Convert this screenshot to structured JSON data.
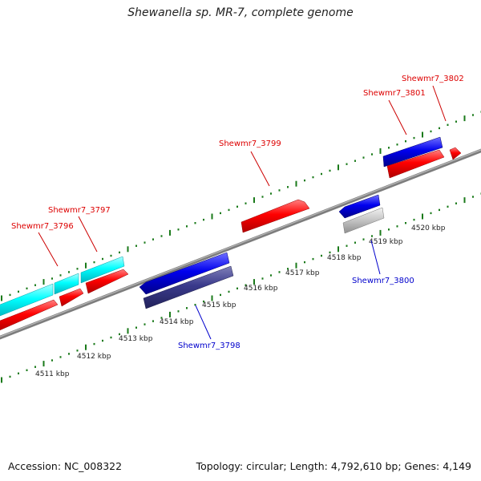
{
  "title": "Shewanella sp. MR-7, complete genome",
  "footer": {
    "accession": "Accession: NC_008322",
    "topology": "Topology: circular; Length: 4,792,610 bp; Genes: 4,149"
  },
  "colors": {
    "forward_gene": "#ff0000",
    "reverse_gene": "#0000ee",
    "cyan_gene": "#00ffff",
    "navy_gene": "#3a3a8c",
    "grey_gene": "#bdbdbd",
    "backbone": "#888888",
    "tick": "#1a7a1a",
    "fwd_label": "#dd0000",
    "rev_label": "#0000cc"
  },
  "scale_labels": [
    "4511 kbp",
    "4512 kbp",
    "4513 kbp",
    "4514 kbp",
    "4515 kbp",
    "4516 kbp",
    "4517 kbp",
    "4518 kbp",
    "4519 kbp",
    "4520 kbp"
  ],
  "gene_labels": [
    {
      "name": "Shewmr7_3796",
      "strand": "forward"
    },
    {
      "name": "Shewmr7_3797",
      "strand": "forward"
    },
    {
      "name": "Shewmr7_3798",
      "strand": "reverse"
    },
    {
      "name": "Shewmr7_3799",
      "strand": "forward"
    },
    {
      "name": "Shewmr7_3800",
      "strand": "reverse"
    },
    {
      "name": "Shewmr7_3801",
      "strand": "forward"
    },
    {
      "name": "Shewmr7_3802",
      "strand": "forward"
    }
  ]
}
